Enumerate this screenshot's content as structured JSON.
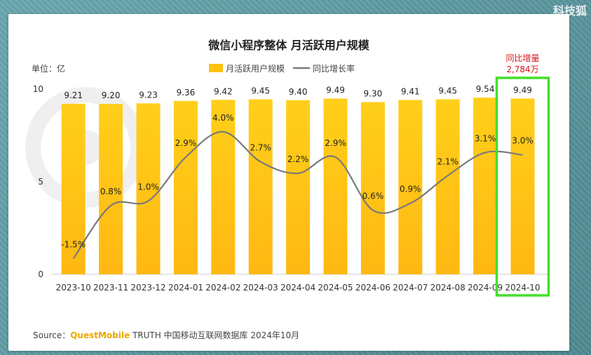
{
  "corner_mark": "科技狐",
  "chart_data": {
    "type": "bar",
    "title": "微信小程序整体 月活跃用户规模",
    "unit_label": "单位：亿",
    "categories": [
      "2023-10",
      "2023-11",
      "2023-12",
      "2024-01",
      "2024-02",
      "2024-03",
      "2024-04",
      "2024-05",
      "2024-06",
      "2024-07",
      "2024-08",
      "2024-09",
      "2024-10"
    ],
    "ylim": [
      0,
      10
    ],
    "yticks": [
      "0",
      "5",
      "10"
    ],
    "series": [
      {
        "name": "月活跃用户规模",
        "kind": "bar",
        "color": "#ffc20e",
        "values": [
          9.21,
          9.2,
          9.23,
          9.36,
          9.42,
          9.45,
          9.4,
          9.49,
          9.3,
          9.41,
          9.45,
          9.54,
          9.49
        ],
        "labels": [
          "9.21",
          "9.20",
          "9.23",
          "9.36",
          "9.42",
          "9.45",
          "9.40",
          "9.49",
          "9.30",
          "9.41",
          "9.45",
          "9.54",
          "9.49"
        ]
      },
      {
        "name": "同比增长率",
        "kind": "line",
        "color": "#7a7a7a",
        "values": [
          -1.5,
          0.8,
          1.0,
          2.9,
          4.0,
          2.7,
          2.2,
          2.9,
          0.6,
          0.9,
          2.1,
          3.1,
          3.0
        ],
        "labels": [
          "-1.5%",
          "0.8%",
          "1.0%",
          "2.9%",
          "4.0%",
          "2.7%",
          "2.2%",
          "2.9%",
          "0.6%",
          "0.9%",
          "2.1%",
          "3.1%",
          "3.0%"
        ]
      }
    ],
    "legend_position": "top-center",
    "grid": false,
    "highlight": {
      "category": "2024-10",
      "color": "#43e02a",
      "line1": "同比增量",
      "line2": "2,784万"
    },
    "source": {
      "prefix": "Source：",
      "brand": "QuestMobile",
      "rest": " TRUTH 中国移动互联网数据库 2024年10月"
    }
  }
}
